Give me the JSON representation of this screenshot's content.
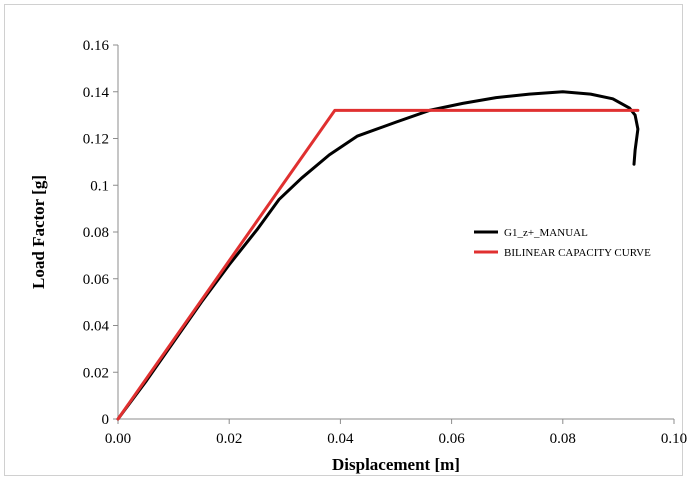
{
  "chart_data": {
    "type": "line",
    "xlabel": "Displacement [m]",
    "ylabel": "Load Factor [g]",
    "xlim": [
      0,
      0.1
    ],
    "ylim": [
      0,
      0.16
    ],
    "x_ticks": [
      "0.00",
      "0.02",
      "0.04",
      "0.06",
      "0.08",
      "0.10"
    ],
    "y_ticks": [
      "0",
      "0.02",
      "0.04",
      "0.06",
      "0.08",
      "0.1",
      "0.12",
      "0.14",
      "0.16"
    ],
    "grid": false,
    "legend_position": "right-middle",
    "series": [
      {
        "name": "G1_z+_MANUAL",
        "color": "#000000",
        "x": [
          0,
          0.005,
          0.01,
          0.015,
          0.02,
          0.025,
          0.029,
          0.033,
          0.038,
          0.043,
          0.05,
          0.056,
          0.062,
          0.068,
          0.074,
          0.08,
          0.085,
          0.089,
          0.092,
          0.093,
          0.0935,
          0.093,
          0.0928
        ],
        "y": [
          0,
          0.016,
          0.033,
          0.05,
          0.066,
          0.081,
          0.094,
          0.103,
          0.113,
          0.121,
          0.127,
          0.132,
          0.135,
          0.1375,
          0.139,
          0.14,
          0.139,
          0.137,
          0.133,
          0.13,
          0.124,
          0.115,
          0.109
        ]
      },
      {
        "name": "BILINEAR CAPACITY CURVE",
        "color": "#e03030",
        "x": [
          0,
          0.039,
          0.0935
        ],
        "y": [
          0,
          0.132,
          0.132
        ]
      }
    ]
  }
}
